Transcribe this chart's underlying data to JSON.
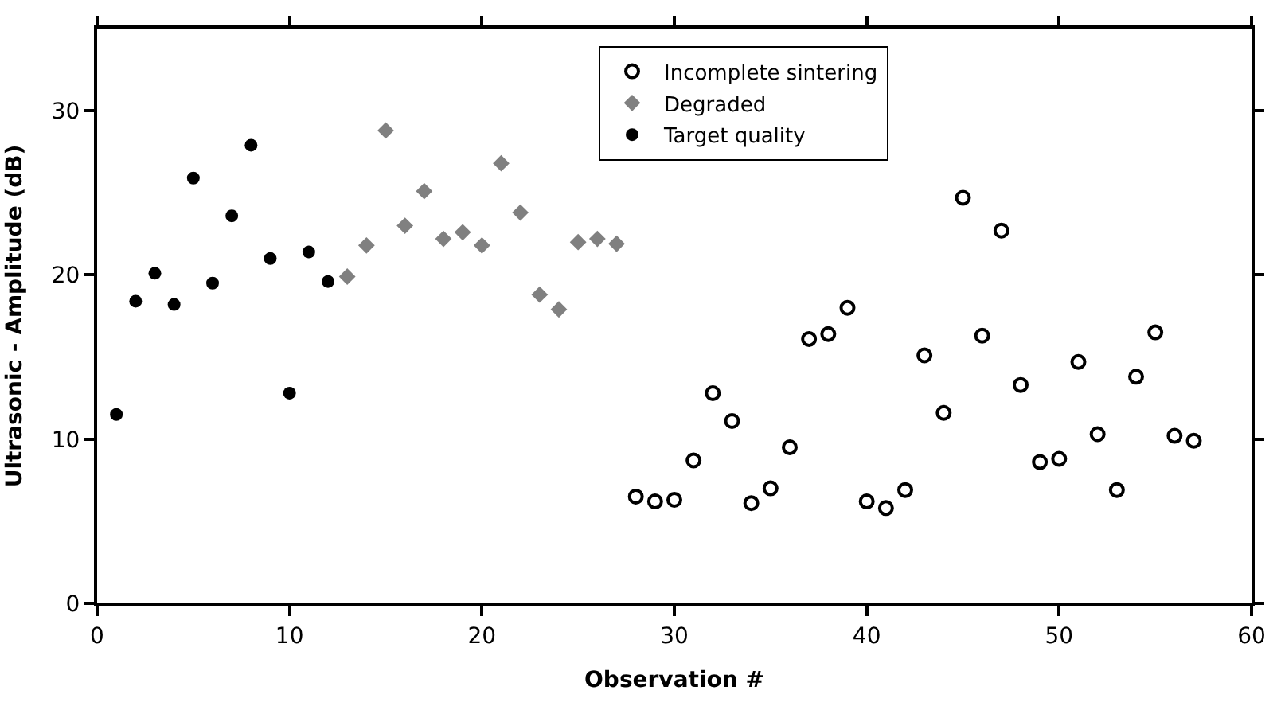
{
  "chart_data": {
    "type": "scatter",
    "xlabel": "Observation #",
    "ylabel": "Ultrasonic - Amplitude (dB)",
    "xlim": [
      0,
      60
    ],
    "xticks": [
      0,
      10,
      20,
      30,
      40,
      50,
      60
    ],
    "ylim": [
      0,
      35
    ],
    "yticks": [
      0,
      10,
      20,
      30
    ],
    "legend": "top",
    "series": [
      {
        "name": "Incomplete sintering",
        "color": "#000000",
        "marker": "circle-open",
        "x": [
          28,
          29,
          30,
          31,
          32,
          33,
          34,
          35,
          36,
          37,
          38,
          39,
          40,
          41,
          42,
          43,
          44,
          45,
          46,
          47,
          48,
          49,
          50,
          51,
          52,
          53,
          54,
          55,
          56,
          57
        ],
        "values": [
          6.5,
          6.2,
          6.3,
          8.7,
          12.8,
          11.1,
          6.1,
          7.0,
          9.5,
          16.1,
          16.4,
          18.0,
          6.2,
          5.8,
          6.9,
          15.1,
          11.6,
          24.7,
          16.3,
          22.7,
          13.3,
          8.6,
          8.8,
          14.7,
          10.3,
          6.9,
          13.8,
          16.5,
          10.2,
          9.9
        ]
      },
      {
        "name": "Degraded",
        "color": "#808080",
        "marker": "diamond",
        "x": [
          13,
          14,
          15,
          16,
          17,
          18,
          19,
          20,
          21,
          22,
          23,
          24,
          25,
          26,
          27
        ],
        "values": [
          19.9,
          21.8,
          28.8,
          23.0,
          25.1,
          22.2,
          22.6,
          21.8,
          26.8,
          23.8,
          18.8,
          17.9,
          22.0,
          22.2,
          21.9
        ]
      },
      {
        "name": "Target quality",
        "color": "#000000",
        "marker": "circle",
        "x": [
          1,
          2,
          3,
          4,
          5,
          6,
          7,
          8,
          9,
          10,
          11,
          12
        ],
        "values": [
          11.5,
          18.4,
          20.1,
          18.2,
          25.9,
          19.5,
          23.6,
          27.9,
          21.0,
          12.8,
          21.4,
          19.6
        ]
      }
    ]
  }
}
